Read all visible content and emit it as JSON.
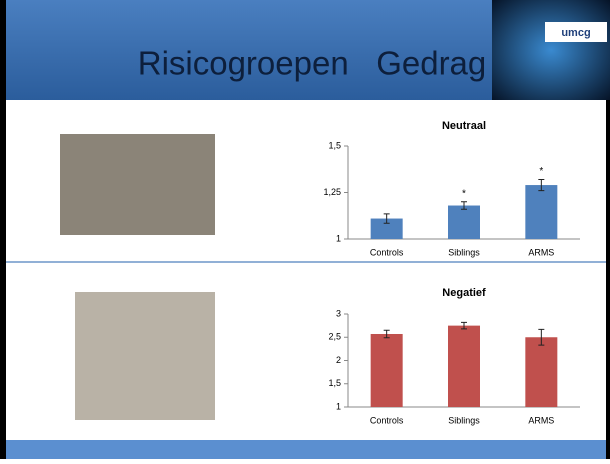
{
  "slide": {
    "title": "Risicogroepen   Gedrag",
    "logo": "umcg"
  },
  "chart_data": [
    {
      "type": "bar",
      "title": "Neutraal",
      "categories": [
        "Controls",
        "Siblings",
        "ARMS"
      ],
      "values": [
        1.11,
        1.18,
        1.29
      ],
      "errors": [
        0.025,
        0.02,
        0.03
      ],
      "significance": [
        null,
        "*",
        "*"
      ],
      "color": "#4f81bd",
      "ylim": [
        1,
        1.5
      ],
      "yticks": [
        1,
        {
          "value": 1.25,
          "label": "1,25"
        },
        {
          "value": 1.5,
          "label": "1,5"
        }
      ]
    },
    {
      "type": "bar",
      "title": "Negatief",
      "categories": [
        "Controls",
        "Siblings",
        "ARMS"
      ],
      "values": [
        2.57,
        2.75,
        2.5
      ],
      "errors": [
        0.08,
        0.07,
        0.17
      ],
      "color": "#c0504d",
      "ylim": [
        1,
        3
      ],
      "yticks": [
        1,
        {
          "value": 1.5,
          "label": "1,5"
        },
        2,
        {
          "value": 2.5,
          "label": "2,5"
        },
        3
      ]
    }
  ]
}
